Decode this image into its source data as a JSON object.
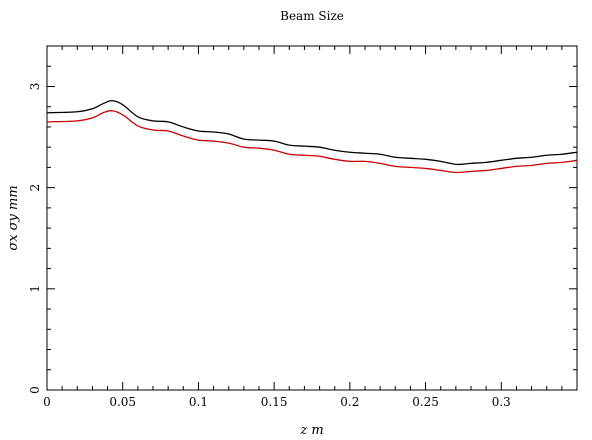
{
  "chart_data": {
    "type": "line",
    "title": "Beam Size",
    "xlabel": "z  m",
    "ylabel": "σx σy  mm",
    "xlim": [
      0,
      0.35
    ],
    "ylim": [
      0,
      3.4
    ],
    "x_ticks": [
      0,
      0.05,
      0.1,
      0.15,
      0.2,
      0.25,
      0.3
    ],
    "x_tick_labels": [
      "0",
      "0.05",
      "0.1",
      "0.15",
      "0.2",
      "0.25",
      "0.3"
    ],
    "y_ticks": [
      0,
      1,
      2,
      3
    ],
    "y_tick_labels": [
      "0",
      "1",
      "2",
      "3"
    ],
    "grid": false,
    "legend": "none",
    "series": [
      {
        "color": "#000000",
        "x": [
          0,
          0.02,
          0.03,
          0.037,
          0.043,
          0.05,
          0.06,
          0.07,
          0.08,
          0.09,
          0.1,
          0.11,
          0.12,
          0.13,
          0.14,
          0.15,
          0.16,
          0.17,
          0.18,
          0.19,
          0.2,
          0.21,
          0.22,
          0.23,
          0.24,
          0.25,
          0.26,
          0.27,
          0.28,
          0.29,
          0.3,
          0.31,
          0.32,
          0.33,
          0.34,
          0.35
        ],
        "values": [
          2.74,
          2.75,
          2.78,
          2.83,
          2.86,
          2.82,
          2.7,
          2.66,
          2.65,
          2.6,
          2.56,
          2.55,
          2.53,
          2.48,
          2.47,
          2.46,
          2.42,
          2.41,
          2.4,
          2.37,
          2.35,
          2.34,
          2.33,
          2.3,
          2.29,
          2.28,
          2.26,
          2.23,
          2.24,
          2.25,
          2.27,
          2.29,
          2.3,
          2.32,
          2.33,
          2.35
        ]
      },
      {
        "color": "#cc0000",
        "x": [
          0,
          0.02,
          0.03,
          0.037,
          0.043,
          0.05,
          0.06,
          0.07,
          0.08,
          0.09,
          0.1,
          0.11,
          0.12,
          0.13,
          0.14,
          0.15,
          0.16,
          0.17,
          0.18,
          0.19,
          0.2,
          0.21,
          0.22,
          0.23,
          0.24,
          0.25,
          0.26,
          0.27,
          0.28,
          0.29,
          0.3,
          0.31,
          0.32,
          0.33,
          0.34,
          0.35
        ],
        "values": [
          2.65,
          2.66,
          2.69,
          2.74,
          2.76,
          2.72,
          2.61,
          2.57,
          2.56,
          2.51,
          2.47,
          2.46,
          2.44,
          2.4,
          2.39,
          2.37,
          2.33,
          2.32,
          2.31,
          2.28,
          2.26,
          2.26,
          2.24,
          2.21,
          2.2,
          2.19,
          2.17,
          2.15,
          2.16,
          2.17,
          2.19,
          2.21,
          2.22,
          2.24,
          2.25,
          2.27
        ]
      }
    ]
  }
}
